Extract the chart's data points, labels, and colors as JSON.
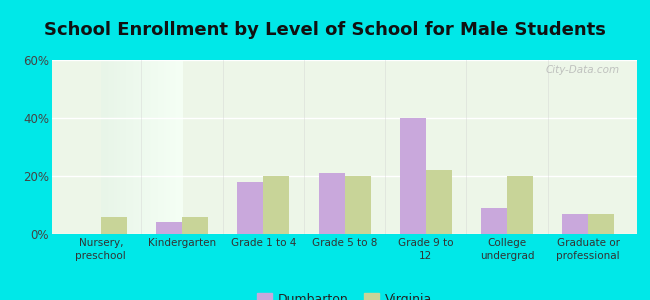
{
  "title": "School Enrollment by Level of School for Male Students",
  "categories": [
    "Nursery,\npreschool",
    "Kindergarten",
    "Grade 1 to 4",
    "Grade 5 to 8",
    "Grade 9 to\n12",
    "College\nundergrad",
    "Graduate or\nprofessional"
  ],
  "dumbarton": [
    0,
    4,
    18,
    21,
    40,
    9,
    7
  ],
  "virginia": [
    6,
    6,
    20,
    20,
    22,
    20,
    7
  ],
  "dumbarton_color": "#c9a8dc",
  "virginia_color": "#c8d498",
  "background_color": "#00e8e8",
  "ylim": [
    0,
    60
  ],
  "yticks": [
    0,
    20,
    40,
    60
  ],
  "ytick_labels": [
    "0%",
    "20%",
    "40%",
    "60%"
  ],
  "title_fontsize": 13,
  "legend_labels": [
    "Dumbarton",
    "Virginia"
  ],
  "bar_width": 0.32,
  "watermark": "City-Data.com"
}
